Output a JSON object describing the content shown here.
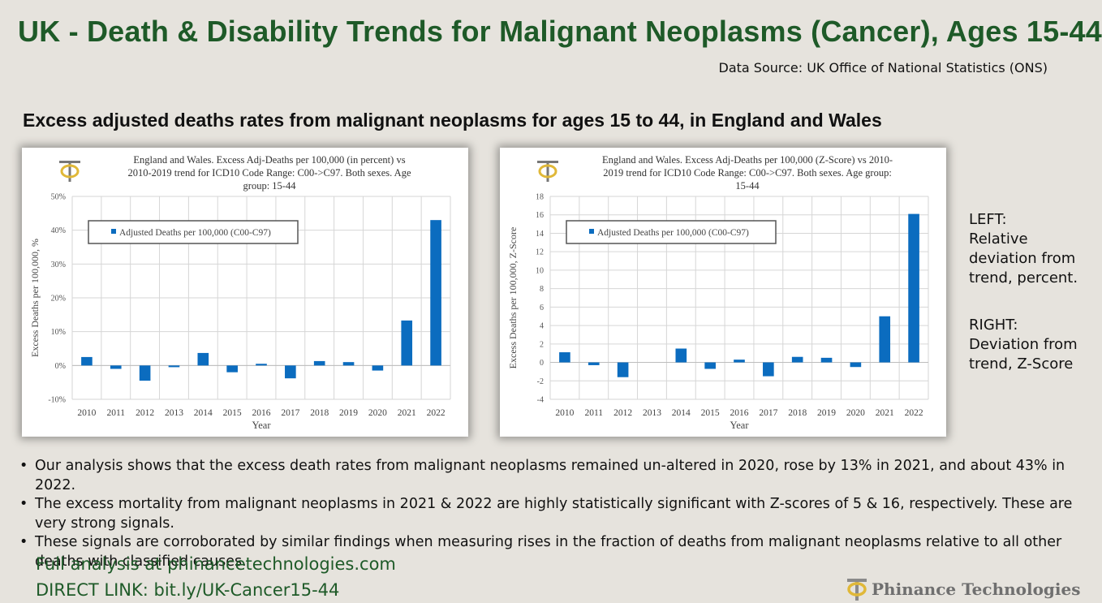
{
  "header": {
    "title": "UK - Death & Disability Trends for Malignant Neoplasms (Cancer), Ages 15-44",
    "source": "Data Source: UK Office of National Statistics (ONS)",
    "subtitle": "Excess adjusted deaths rates from malignant neoplasms for ages 15 to 44, in England and Wales"
  },
  "chart_data": [
    {
      "type": "bar",
      "title": "England and Wales. Excess Adj-Deaths per 100,000 (in percent) vs 2010-2019 trend for ICD10 Code Range: C00->C97. Both sexes. Age group: 15-44",
      "title_lines": [
        "England and Wales. Excess Adj-Deaths per 100,000 (in percent) vs",
        "2010-2019 trend for ICD10 Code Range: C00->C97. Both sexes. Age",
        "group: 15-44"
      ],
      "xlabel": "Year",
      "ylabel": "Excess Deaths per 100,000, %",
      "legend": "Adjusted Deaths per 100,000 (C00-C97)",
      "categories": [
        "2010",
        "2011",
        "2012",
        "2013",
        "2014",
        "2015",
        "2016",
        "2017",
        "2018",
        "2019",
        "2020",
        "2021",
        "2022"
      ],
      "values": [
        2.5,
        -1,
        -4.5,
        -0.5,
        3.7,
        -2,
        0.5,
        -3.8,
        1.3,
        1,
        -1.5,
        13.3,
        43
      ],
      "ylim": [
        -10,
        50
      ],
      "yticks": [
        -10,
        0,
        10,
        20,
        30,
        40,
        50
      ],
      "ytick_labels": [
        "-10%",
        "0%",
        "10%",
        "20%",
        "30%",
        "40%",
        "50%"
      ],
      "color": "#0b6cbf"
    },
    {
      "type": "bar",
      "title": "England and Wales. Excess Adj-Deaths per 100,000 (Z-Score) vs 2010-2019 trend for ICD10 Code Range: C00->C97. Both sexes. Age group: 15-44",
      "title_lines": [
        "England and Wales. Excess Adj-Deaths per 100,000 (Z-Score) vs 2010-",
        "2019 trend for ICD10 Code Range: C00->C97. Both sexes. Age group:",
        "15-44"
      ],
      "xlabel": "Year",
      "ylabel": "Excess Deaths per 100,000, Z-Score",
      "legend": "Adjusted Deaths per 100,000 (C00-C97)",
      "categories": [
        "2010",
        "2011",
        "2012",
        "2013",
        "2014",
        "2015",
        "2016",
        "2017",
        "2018",
        "2019",
        "2020",
        "2021",
        "2022"
      ],
      "values": [
        1.1,
        -0.3,
        -1.6,
        0,
        1.5,
        -0.7,
        0.3,
        -1.5,
        0.6,
        0.5,
        -0.5,
        5,
        16.1
      ],
      "ylim": [
        -4,
        18
      ],
      "yticks": [
        -4,
        -2,
        0,
        2,
        4,
        6,
        8,
        10,
        12,
        14,
        16,
        18
      ],
      "ytick_labels": [
        "-4",
        "-2",
        "0",
        "2",
        "4",
        "6",
        "8",
        "10",
        "12",
        "14",
        "16",
        "18"
      ],
      "color": "#0b6cbf"
    }
  ],
  "side_note": {
    "left_label": "LEFT:",
    "left_text": "Relative deviation from trend, percent.",
    "right_label": "RIGHT:",
    "right_text": "Deviation from trend, Z-Score"
  },
  "bullets": [
    "Our analysis shows that the excess death rates from malignant neoplasms remained un-altered in 2020, rose by 13% in 2021, and about 43% in 2022.",
    "The excess mortality from malignant neoplasms in 2021 & 2022 are highly statistically significant with Z-scores of 5 & 16, respectively. These are very strong signals.",
    "These signals are corroborated by similar findings when measuring rises in the fraction of deaths from malignant neoplasms relative to all other deaths with classified causes."
  ],
  "footer": {
    "analysis_link": "Full analysis at phinancetechnologies.com",
    "direct_link": "DIRECT LINK: bit.ly/UK-Cancer15-44",
    "brand": "Phinance Technologies"
  },
  "colors": {
    "title_green": "#1e5a28",
    "bar_blue": "#0b6cbf",
    "logo_gold": "#e0b838"
  }
}
